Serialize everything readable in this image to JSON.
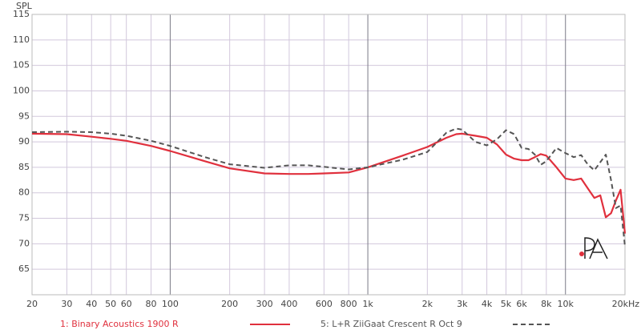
{
  "chart_data": {
    "type": "line",
    "y_label": "SPL",
    "log_x": true,
    "grid": true,
    "xlim": [
      20,
      20000
    ],
    "ylim": [
      60,
      115
    ],
    "yticks": [
      65,
      70,
      75,
      80,
      85,
      90,
      95,
      100,
      105,
      110,
      115
    ],
    "xticks": [
      20,
      30,
      40,
      50,
      60,
      80,
      100,
      200,
      300,
      400,
      600,
      800,
      {
        "value": 1000,
        "label": "1k"
      },
      {
        "value": 2000,
        "label": "2k"
      },
      {
        "value": 3000,
        "label": "3k"
      },
      {
        "value": 4000,
        "label": "4k"
      },
      {
        "value": 5000,
        "label": "5k"
      },
      {
        "value": 6000,
        "label": "6k"
      },
      {
        "value": 8000,
        "label": "8k"
      },
      {
        "value": 10000,
        "label": "10k"
      },
      {
        "value": 20000,
        "label": "20kHz"
      }
    ],
    "x": [
      20,
      30,
      40,
      50,
      60,
      80,
      100,
      150,
      200,
      300,
      400,
      500,
      600,
      800,
      1000,
      1500,
      2000,
      2500,
      2800,
      3000,
      3500,
      4000,
      4500,
      5000,
      5500,
      6000,
      6500,
      7000,
      7500,
      8000,
      9000,
      10000,
      11000,
      12000,
      13000,
      14000,
      15000,
      16000,
      17000,
      18000,
      19000,
      20000
    ],
    "series": [
      {
        "name": "1: Binary Acoustics 1900 R",
        "color": "#e0303d",
        "dashed": false,
        "values": [
          91.6,
          91.5,
          91.0,
          90.6,
          90.2,
          89.2,
          88.2,
          86.2,
          84.8,
          83.8,
          83.7,
          83.7,
          83.8,
          84.0,
          85.0,
          87.3,
          89.0,
          90.8,
          91.5,
          91.6,
          91.2,
          90.8,
          89.5,
          87.5,
          86.7,
          86.4,
          86.4,
          87.0,
          87.6,
          87.3,
          85.0,
          82.8,
          82.5,
          82.8,
          80.8,
          79.0,
          79.5,
          75.2,
          76.0,
          78.5,
          80.6,
          72.0
        ]
      },
      {
        "name": "5: L+R ZiiGaat Crescent R Oct 9",
        "color": "#555555",
        "dashed": true,
        "values": [
          91.9,
          92.0,
          91.9,
          91.6,
          91.2,
          90.2,
          89.2,
          87.0,
          85.6,
          84.9,
          85.4,
          85.4,
          85.1,
          84.6,
          85.0,
          86.5,
          88.0,
          91.8,
          92.6,
          92.4,
          90.0,
          89.3,
          90.5,
          92.3,
          91.5,
          88.8,
          88.6,
          87.5,
          85.5,
          86.2,
          88.8,
          87.8,
          87.0,
          87.4,
          85.5,
          84.4,
          86.0,
          87.5,
          82.5,
          77.0,
          77.5,
          69.5
        ]
      }
    ]
  }
}
